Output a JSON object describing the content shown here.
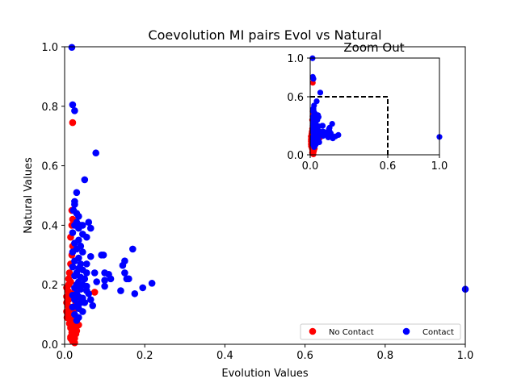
{
  "chart_data": [
    {
      "type": "scatter",
      "title": "Coevolution MI pairs Evol vs Natural",
      "xlabel": "Evolution Values",
      "ylabel": "Natural Values",
      "xlim": [
        0,
        1
      ],
      "ylim": [
        0,
        1
      ],
      "xticks": [
        "0.0",
        "0.2",
        "0.4",
        "0.6",
        "0.8",
        "1.0"
      ],
      "yticks": [
        "0.0",
        "0.2",
        "0.4",
        "0.6",
        "0.8",
        "1.0"
      ],
      "legend": {
        "placement": "lower-right",
        "columns": 2
      },
      "series": [
        {
          "name": "No Contact",
          "color": "#ff0000",
          "points": [
            [
              0.02,
              0.745
            ],
            [
              0.018,
              0.45
            ],
            [
              0.02,
              0.42
            ],
            [
              0.018,
              0.4
            ],
            [
              0.015,
              0.36
            ],
            [
              0.02,
              0.33
            ],
            [
              0.018,
              0.3
            ],
            [
              0.015,
              0.27
            ],
            [
              0.02,
              0.26
            ],
            [
              0.012,
              0.24
            ],
            [
              0.01,
              0.22
            ],
            [
              0.015,
              0.21
            ],
            [
              0.01,
              0.2
            ],
            [
              0.005,
              0.19
            ],
            [
              0.008,
              0.18
            ],
            [
              0.012,
              0.17
            ],
            [
              0.005,
              0.16
            ],
            [
              0.01,
              0.15
            ],
            [
              0.005,
              0.14
            ],
            [
              0.008,
              0.13
            ],
            [
              0.012,
              0.12
            ],
            [
              0.005,
              0.11
            ],
            [
              0.01,
              0.1
            ],
            [
              0.006,
              0.09
            ],
            [
              0.012,
              0.085
            ],
            [
              0.018,
              0.08
            ],
            [
              0.02,
              0.07
            ],
            [
              0.025,
              0.06
            ],
            [
              0.015,
              0.055
            ],
            [
              0.022,
              0.05
            ],
            [
              0.03,
              0.045
            ],
            [
              0.018,
              0.04
            ],
            [
              0.028,
              0.035
            ],
            [
              0.02,
              0.03
            ],
            [
              0.015,
              0.025
            ],
            [
              0.025,
              0.02
            ],
            [
              0.018,
              0.015
            ],
            [
              0.02,
              0.01
            ],
            [
              0.025,
              0.005
            ],
            [
              0.03,
              0.06
            ],
            [
              0.035,
              0.065
            ],
            [
              0.022,
              0.11
            ],
            [
              0.028,
              0.14
            ],
            [
              0.018,
              0.16
            ],
            [
              0.025,
              0.18
            ],
            [
              0.03,
              0.2
            ],
            [
              0.075,
              0.175
            ],
            [
              0.015,
              0.02
            ],
            [
              0.012,
              0.07
            ],
            [
              0.02,
              0.065
            ],
            [
              0.03,
              0.09
            ],
            [
              0.025,
              0.12
            ]
          ]
        },
        {
          "name": "Contact",
          "color": "#0000ff",
          "points": [
            [
              0.018,
              0.998
            ],
            [
              0.02,
              0.805
            ],
            [
              0.025,
              0.785
            ],
            [
              0.078,
              0.643
            ],
            [
              0.05,
              0.553
            ],
            [
              0.03,
              0.51
            ],
            [
              0.025,
              0.48
            ],
            [
              0.025,
              0.47
            ],
            [
              0.022,
              0.45
            ],
            [
              0.03,
              0.44
            ],
            [
              0.035,
              0.43
            ],
            [
              0.03,
              0.41
            ],
            [
              0.04,
              0.4
            ],
            [
              0.045,
              0.4
            ],
            [
              0.025,
              0.4
            ],
            [
              0.035,
              0.39
            ],
            [
              0.06,
              0.41
            ],
            [
              0.065,
              0.39
            ],
            [
              0.02,
              0.375
            ],
            [
              0.045,
              0.37
            ],
            [
              0.055,
              0.36
            ],
            [
              0.035,
              0.35
            ],
            [
              0.025,
              0.34
            ],
            [
              0.04,
              0.33
            ],
            [
              0.03,
              0.32
            ],
            [
              0.02,
              0.31
            ],
            [
              0.045,
              0.31
            ],
            [
              0.065,
              0.295
            ],
            [
              0.035,
              0.29
            ],
            [
              0.025,
              0.28
            ],
            [
              0.04,
              0.27
            ],
            [
              0.055,
              0.27
            ],
            [
              0.02,
              0.26
            ],
            [
              0.035,
              0.255
            ],
            [
              0.045,
              0.25
            ],
            [
              0.03,
              0.24
            ],
            [
              0.055,
              0.24
            ],
            [
              0.025,
              0.23
            ],
            [
              0.04,
              0.225
            ],
            [
              0.05,
              0.22
            ],
            [
              0.035,
              0.21
            ],
            [
              0.03,
              0.2
            ],
            [
              0.045,
              0.2
            ],
            [
              0.025,
              0.19
            ],
            [
              0.04,
              0.185
            ],
            [
              0.055,
              0.18
            ],
            [
              0.03,
              0.17
            ],
            [
              0.02,
              0.165
            ],
            [
              0.035,
              0.16
            ],
            [
              0.045,
              0.155
            ],
            [
              0.025,
              0.15
            ],
            [
              0.04,
              0.14
            ],
            [
              0.03,
              0.13
            ],
            [
              0.02,
              0.125
            ],
            [
              0.035,
              0.12
            ],
            [
              0.045,
              0.11
            ],
            [
              0.025,
              0.1
            ],
            [
              0.035,
              0.09
            ],
            [
              0.03,
              0.08
            ],
            [
              0.092,
              0.3
            ],
            [
              0.097,
              0.3
            ],
            [
              0.15,
              0.28
            ],
            [
              0.145,
              0.265
            ],
            [
              0.17,
              0.32
            ],
            [
              0.1,
              0.24
            ],
            [
              0.11,
              0.235
            ],
            [
              0.115,
              0.22
            ],
            [
              0.1,
              0.215
            ],
            [
              0.155,
              0.22
            ],
            [
              0.16,
              0.22
            ],
            [
              0.15,
              0.24
            ],
            [
              0.1,
              0.195
            ],
            [
              0.14,
              0.18
            ],
            [
              0.175,
              0.17
            ],
            [
              0.195,
              0.19
            ],
            [
              0.218,
              0.205
            ],
            [
              0.07,
              0.13
            ],
            [
              0.08,
              0.21
            ],
            [
              0.065,
              0.15
            ],
            [
              0.075,
              0.24
            ],
            [
              0.055,
              0.195
            ],
            [
              0.06,
              0.17
            ],
            [
              0.05,
              0.14
            ],
            [
              1.0,
              0.185
            ]
          ]
        }
      ]
    },
    {
      "type": "scatter",
      "title": "Zoom Out",
      "xlim": [
        0,
        1
      ],
      "ylim": [
        0,
        1
      ],
      "xticks": [
        "0.0",
        "0.6",
        "1.0"
      ],
      "yticks": [
        "0.0",
        "0.6",
        "1.0"
      ],
      "xtick_values": [
        0,
        0.6,
        1.0
      ],
      "ytick_values": [
        0,
        0.6,
        1.0
      ],
      "zoom_box": {
        "x": [
          0,
          0.6
        ],
        "y": [
          0,
          0.6
        ],
        "style": "dashed"
      }
    }
  ]
}
